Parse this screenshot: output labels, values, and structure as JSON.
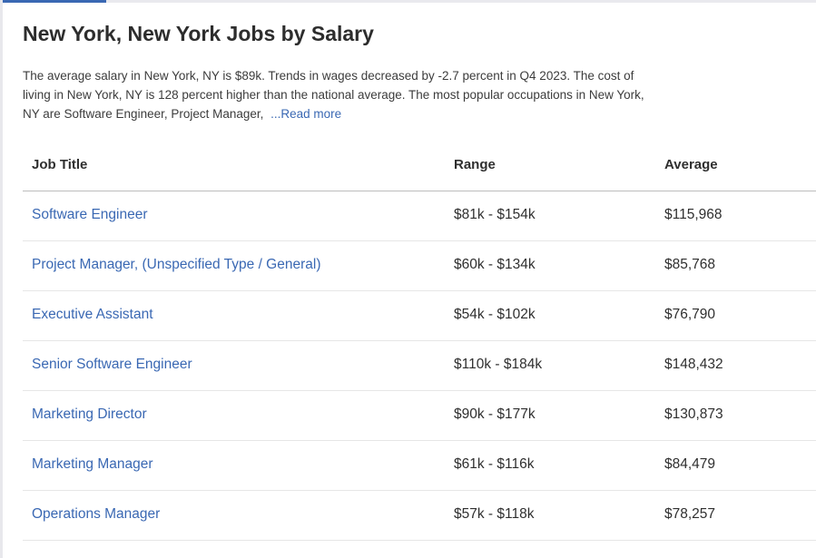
{
  "page": {
    "title": "New York, New York Jobs by Salary",
    "summary": "The average salary in New York, NY is $89k. Trends in wages decreased by -2.7 percent in Q4 2023. The cost of living in New York, NY is 128 percent higher than the national average. The most popular occupations in New York, NY are Software Engineer, Project Manager, ",
    "read_more": "...Read more"
  },
  "colors": {
    "link": "#3a68b3",
    "text": "#2f2f2f",
    "tab_indicator": "#3a68b3"
  },
  "table": {
    "headers": {
      "job_title": "Job Title",
      "range": "Range",
      "average": "Average"
    },
    "rows": [
      {
        "title": "Software Engineer",
        "range": "$81k - $154k",
        "average": "$115,968"
      },
      {
        "title": "Project Manager, (Unspecified Type / General)",
        "range": "$60k - $134k",
        "average": "$85,768"
      },
      {
        "title": "Executive Assistant",
        "range": "$54k - $102k",
        "average": "$76,790"
      },
      {
        "title": "Senior Software Engineer",
        "range": "$110k - $184k",
        "average": "$148,432"
      },
      {
        "title": "Marketing Director",
        "range": "$90k - $177k",
        "average": "$130,873"
      },
      {
        "title": "Marketing Manager",
        "range": "$61k - $116k",
        "average": "$84,479"
      },
      {
        "title": "Operations Manager",
        "range": "$57k - $118k",
        "average": "$78,257"
      }
    ]
  }
}
